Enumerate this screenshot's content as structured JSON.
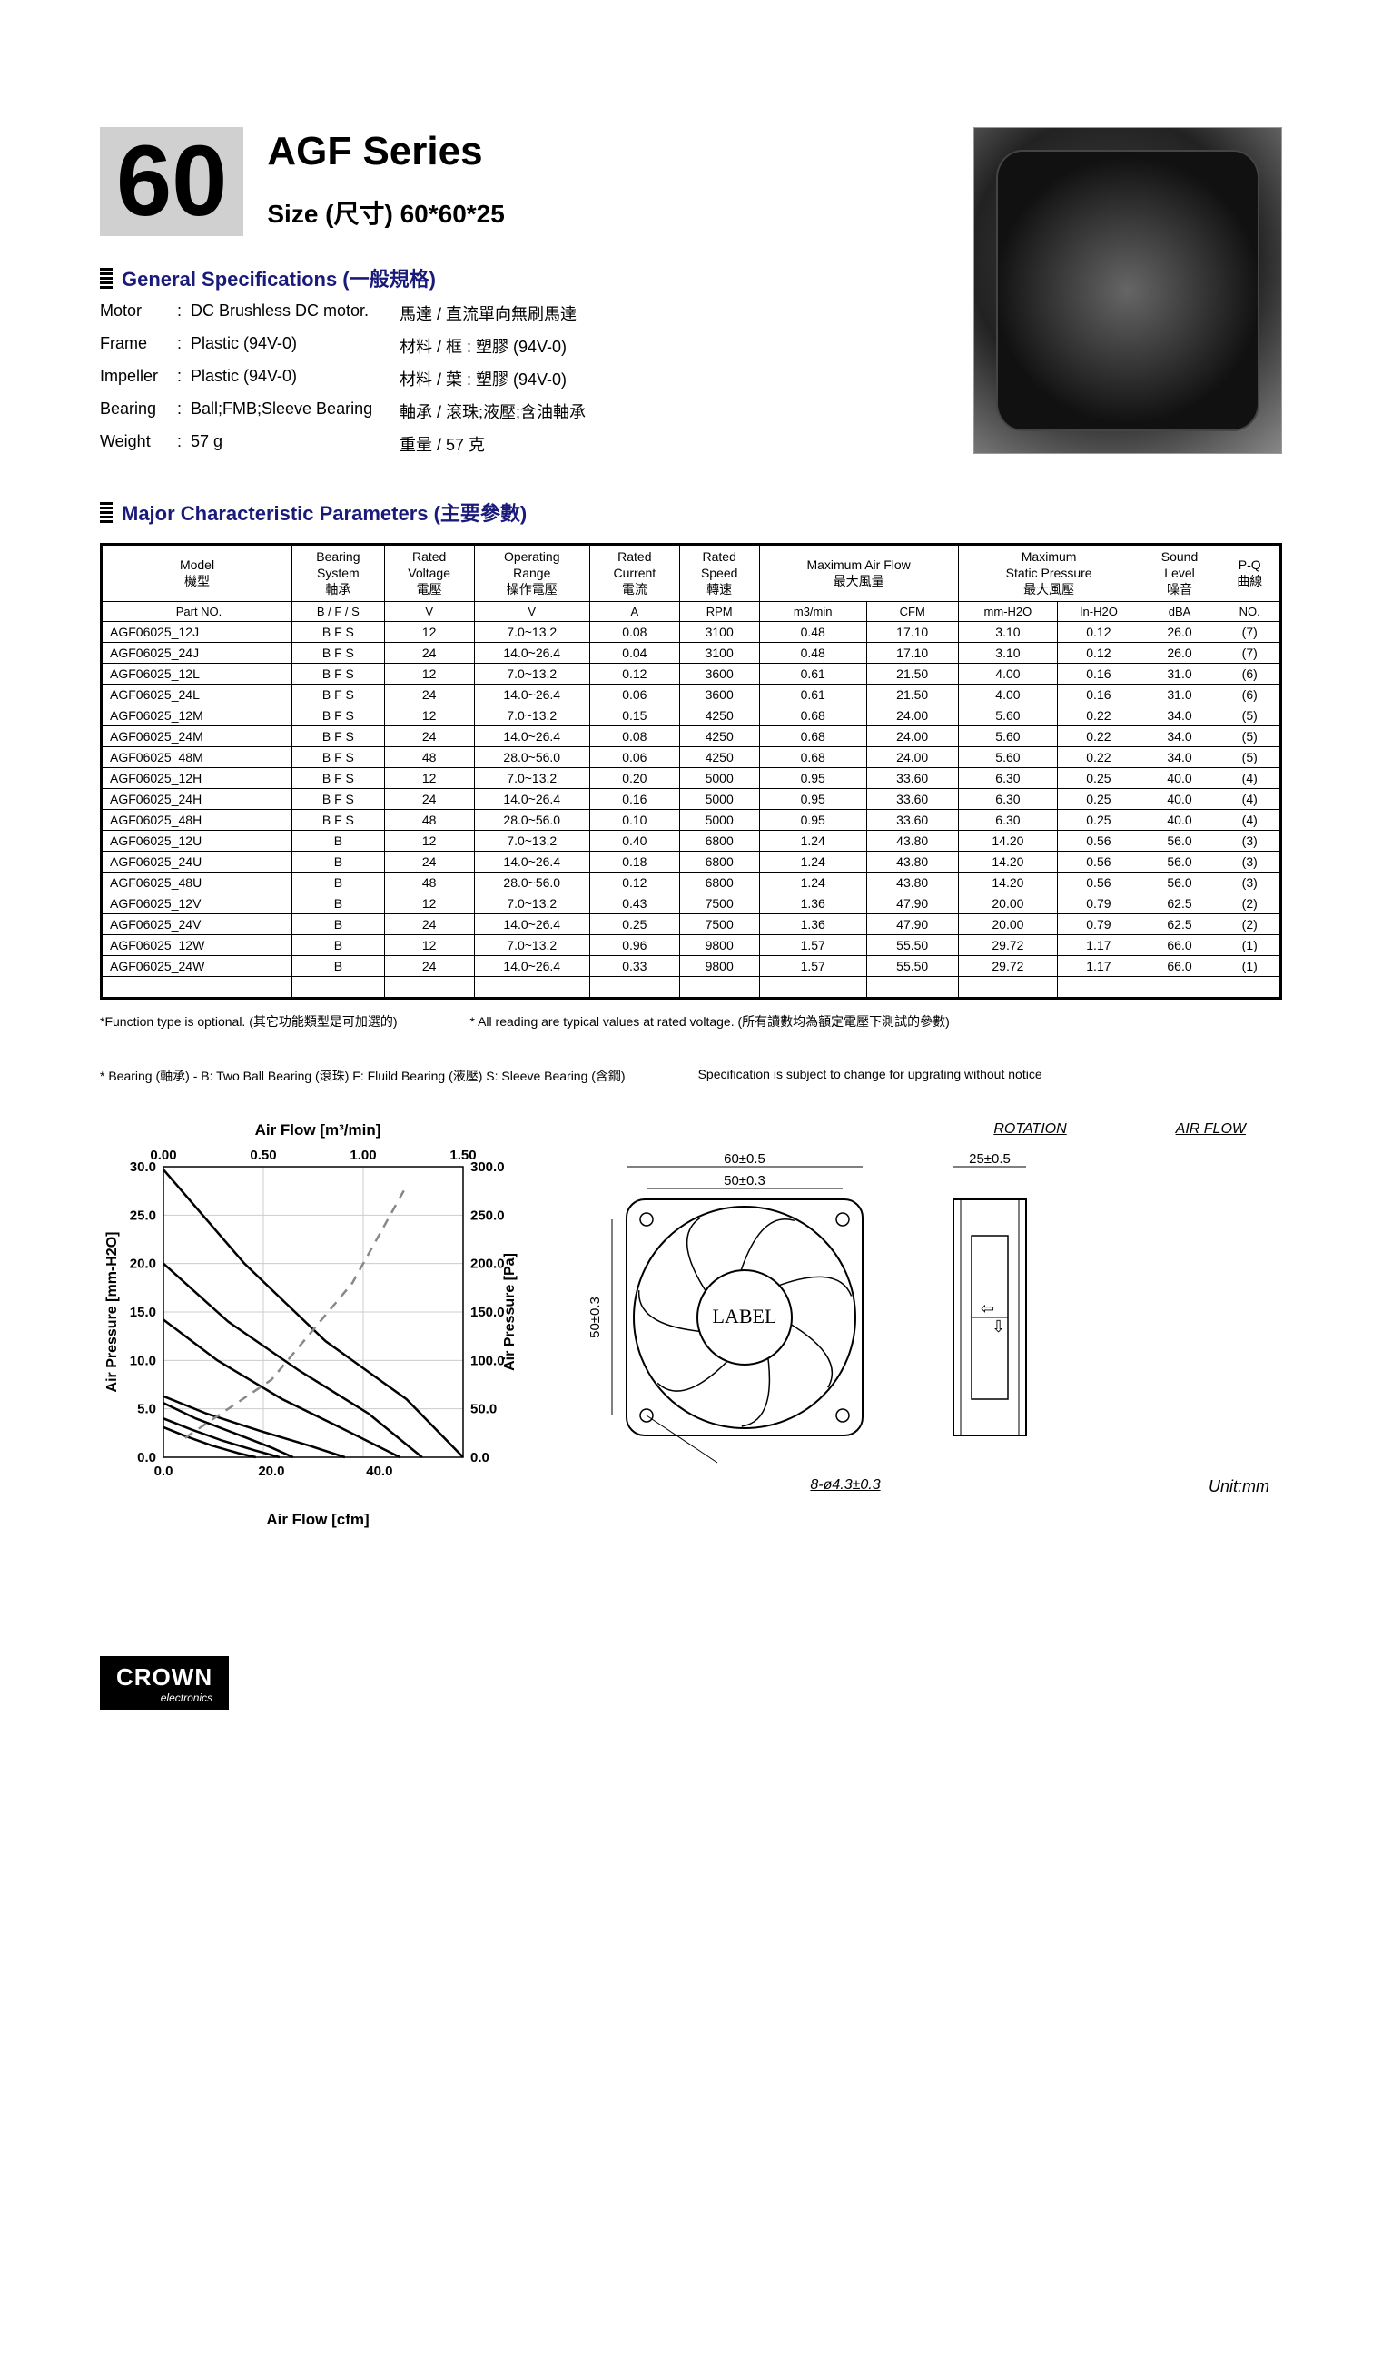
{
  "header": {
    "number": "60",
    "series": "AGF Series",
    "size_label": "Size (尺寸) 60*60*25"
  },
  "general_title": "General Specifications  (一般規格)",
  "specs": [
    {
      "lbl": "Motor",
      "val_en": "DC Brushless DC motor.",
      "val_zh": "馬達 / 直流單向無刷馬達"
    },
    {
      "lbl": "Frame",
      "val_en": "Plastic (94V-0)",
      "val_zh": "材料 / 框 : 塑膠 (94V-0)"
    },
    {
      "lbl": "Impeller",
      "val_en": "Plastic (94V-0)",
      "val_zh": "材料 / 葉 : 塑膠 (94V-0)"
    },
    {
      "lbl": "Bearing",
      "val_en": "Ball;FMB;Sleeve Bearing",
      "val_zh": "軸承 / 滾珠;液壓;含油軸承"
    },
    {
      "lbl": "Weight",
      "val_en": "57  g",
      "val_zh": "重量 / 57  克"
    }
  ],
  "param_title": "Major Characteristic Parameters (主要參數)",
  "table": {
    "headers_top": [
      {
        "t": "Model\n機型",
        "span": 1
      },
      {
        "t": "Bearing\nSystem\n軸承",
        "span": 1
      },
      {
        "t": "Rated\nVoltage\n電壓",
        "span": 1
      },
      {
        "t": "Operating\nRange\n操作電壓",
        "span": 1
      },
      {
        "t": "Rated\nCurrent\n電流",
        "span": 1
      },
      {
        "t": "Rated\nSpeed\n轉速",
        "span": 1
      },
      {
        "t": "Maximum Air Flow\n最大風量",
        "span": 2
      },
      {
        "t": "Maximum\nStatic  Pressure\n最大風壓",
        "span": 2
      },
      {
        "t": "Sound\nLevel\n噪音",
        "span": 1
      },
      {
        "t": "P-Q\n曲線",
        "span": 1
      }
    ],
    "units": [
      "Part NO.",
      "B / F / S",
      "V",
      "V",
      "A",
      "RPM",
      "m3/min",
      "CFM",
      "mm-H2O",
      "In-H2O",
      "dBA",
      "NO."
    ],
    "rows": [
      [
        "AGF06025_12J",
        "B F S",
        "12",
        "7.0~13.2",
        "0.08",
        "3100",
        "0.48",
        "17.10",
        "3.10",
        "0.12",
        "26.0",
        "(7)"
      ],
      [
        "AGF06025_24J",
        "B F S",
        "24",
        "14.0~26.4",
        "0.04",
        "3100",
        "0.48",
        "17.10",
        "3.10",
        "0.12",
        "26.0",
        "(7)"
      ],
      [
        "AGF06025_12L",
        "B F S",
        "12",
        "7.0~13.2",
        "0.12",
        "3600",
        "0.61",
        "21.50",
        "4.00",
        "0.16",
        "31.0",
        "(6)"
      ],
      [
        "AGF06025_24L",
        "B F S",
        "24",
        "14.0~26.4",
        "0.06",
        "3600",
        "0.61",
        "21.50",
        "4.00",
        "0.16",
        "31.0",
        "(6)"
      ],
      [
        "AGF06025_12M",
        "B F S",
        "12",
        "7.0~13.2",
        "0.15",
        "4250",
        "0.68",
        "24.00",
        "5.60",
        "0.22",
        "34.0",
        "(5)"
      ],
      [
        "AGF06025_24M",
        "B F S",
        "24",
        "14.0~26.4",
        "0.08",
        "4250",
        "0.68",
        "24.00",
        "5.60",
        "0.22",
        "34.0",
        "(5)"
      ],
      [
        "AGF06025_48M",
        "B F S",
        "48",
        "28.0~56.0",
        "0.06",
        "4250",
        "0.68",
        "24.00",
        "5.60",
        "0.22",
        "34.0",
        "(5)"
      ],
      [
        "AGF06025_12H",
        "B F S",
        "12",
        "7.0~13.2",
        "0.20",
        "5000",
        "0.95",
        "33.60",
        "6.30",
        "0.25",
        "40.0",
        "(4)"
      ],
      [
        "AGF06025_24H",
        "B F S",
        "24",
        "14.0~26.4",
        "0.16",
        "5000",
        "0.95",
        "33.60",
        "6.30",
        "0.25",
        "40.0",
        "(4)"
      ],
      [
        "AGF06025_48H",
        "B F S",
        "48",
        "28.0~56.0",
        "0.10",
        "5000",
        "0.95",
        "33.60",
        "6.30",
        "0.25",
        "40.0",
        "(4)"
      ],
      [
        "AGF06025_12U",
        "B",
        "12",
        "7.0~13.2",
        "0.40",
        "6800",
        "1.24",
        "43.80",
        "14.20",
        "0.56",
        "56.0",
        "(3)"
      ],
      [
        "AGF06025_24U",
        "B",
        "24",
        "14.0~26.4",
        "0.18",
        "6800",
        "1.24",
        "43.80",
        "14.20",
        "0.56",
        "56.0",
        "(3)"
      ],
      [
        "AGF06025_48U",
        "B",
        "48",
        "28.0~56.0",
        "0.12",
        "6800",
        "1.24",
        "43.80",
        "14.20",
        "0.56",
        "56.0",
        "(3)"
      ],
      [
        "AGF06025_12V",
        "B",
        "12",
        "7.0~13.2",
        "0.43",
        "7500",
        "1.36",
        "47.90",
        "20.00",
        "0.79",
        "62.5",
        "(2)"
      ],
      [
        "AGF06025_24V",
        "B",
        "24",
        "14.0~26.4",
        "0.25",
        "7500",
        "1.36",
        "47.90",
        "20.00",
        "0.79",
        "62.5",
        "(2)"
      ],
      [
        "AGF06025_12W",
        "B",
        "12",
        "7.0~13.2",
        "0.96",
        "9800",
        "1.57",
        "55.50",
        "29.72",
        "1.17",
        "66.0",
        "(1)"
      ],
      [
        "AGF06025_24W",
        "B",
        "24",
        "14.0~26.4",
        "0.33",
        "9800",
        "1.57",
        "55.50",
        "29.72",
        "1.17",
        "66.0",
        "(1)"
      ]
    ]
  },
  "footnotes": [
    "*Function type is optional. (其它功能類型是可加選的)",
    "* All reading are typical values at rated voltage. (所有讀數均為額定電壓下測試的參數)",
    "* Bearing (軸承) - B: Two Ball Bearing (滾珠) F: Fluild Bearing (液壓)  S: Sleeve Bearing (含鋼)",
    "Specification is subject to change for upgrating without notice"
  ],
  "chart": {
    "title_top": "Air Flow [m³/min]",
    "title_bot": "Air Flow [cfm]",
    "ylabel_left": "Air Pressure [mm-H2O]",
    "ylabel_right": "Air Pressure [Pa]",
    "x_top_ticks": [
      "0.00",
      "0.50",
      "1.00",
      "1.50"
    ],
    "x_bot_ticks": [
      "0.0",
      "20.0",
      "40.0"
    ],
    "y_left_ticks": [
      "30.0",
      "25.0",
      "20.0",
      "15.0",
      "10.0",
      "5.0",
      "0.0"
    ],
    "y_right_ticks": [
      "300.0",
      "250.0",
      "200.0",
      "150.0",
      "100.0",
      "50.0",
      "0.0"
    ],
    "xlim_cfm": [
      0,
      55.5
    ],
    "ylim_mm": [
      0,
      30
    ],
    "grid_color": "#cccccc",
    "curve_color": "#000000",
    "dash_color": "#888888",
    "curves": [
      [
        [
          0,
          29.7
        ],
        [
          15,
          20
        ],
        [
          30,
          12
        ],
        [
          45,
          6
        ],
        [
          55.5,
          0
        ]
      ],
      [
        [
          0,
          20.0
        ],
        [
          12,
          14
        ],
        [
          25,
          9
        ],
        [
          38,
          4.5
        ],
        [
          47.9,
          0
        ]
      ],
      [
        [
          0,
          14.2
        ],
        [
          10,
          10
        ],
        [
          22,
          6
        ],
        [
          33,
          3
        ],
        [
          43.8,
          0
        ]
      ],
      [
        [
          0,
          6.3
        ],
        [
          8,
          4.5
        ],
        [
          18,
          2.7
        ],
        [
          27,
          1.2
        ],
        [
          33.6,
          0
        ]
      ],
      [
        [
          0,
          5.6
        ],
        [
          6,
          4
        ],
        [
          14,
          2.3
        ],
        [
          20,
          1
        ],
        [
          24.0,
          0
        ]
      ],
      [
        [
          0,
          4.0
        ],
        [
          5,
          2.9
        ],
        [
          11,
          1.7
        ],
        [
          17,
          0.7
        ],
        [
          21.5,
          0
        ]
      ],
      [
        [
          0,
          3.1
        ],
        [
          4,
          2.2
        ],
        [
          9,
          1.2
        ],
        [
          14,
          0.4
        ],
        [
          17.1,
          0
        ]
      ]
    ],
    "dash_curve": [
      [
        4,
        2
      ],
      [
        20,
        8
      ],
      [
        35,
        18
      ],
      [
        45,
        28
      ]
    ]
  },
  "drawing": {
    "rotation_label": "ROTATION",
    "airflow_label": "AIR FLOW",
    "dim_outer": "60±0.5",
    "dim_inner": "50±0.3",
    "dim_side": "50±0.3",
    "dim_depth": "25±0.5",
    "label_text": "LABEL",
    "hole_spec": "8-ø4.3±0.3",
    "unit": "Unit:mm"
  },
  "logo": {
    "line1": "CROWN",
    "line2": "electronics"
  }
}
